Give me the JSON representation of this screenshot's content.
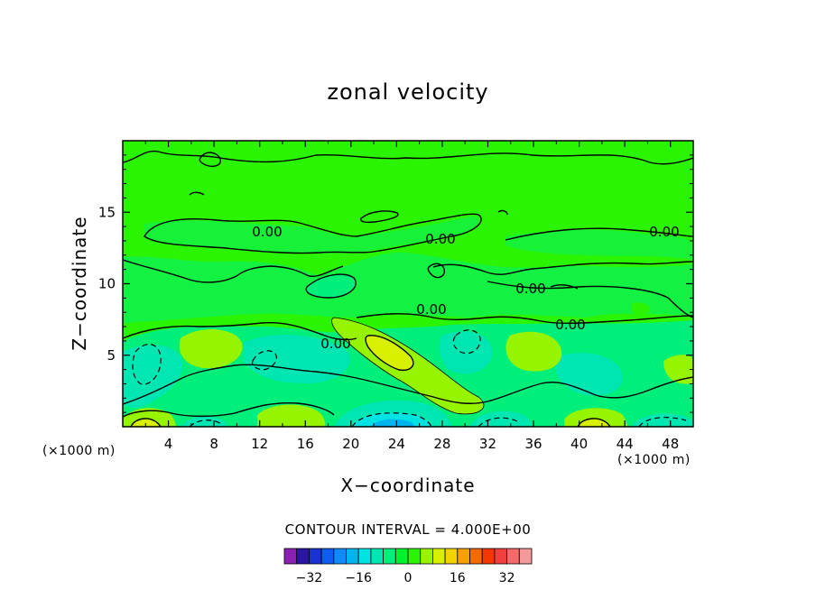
{
  "chart_data": {
    "type": "heatmap",
    "title": "zonal velocity",
    "xlabel": "X−coordinate",
    "ylabel": "Z−coordinate",
    "x_unit_left": "(×1000 m)",
    "x_unit_right": "(×1000 m)",
    "xlim": [
      0,
      50
    ],
    "ylim": [
      0,
      20
    ],
    "x_ticks": [
      "4",
      "8",
      "12",
      "16",
      "20",
      "24",
      "28",
      "32",
      "36",
      "40",
      "44",
      "48"
    ],
    "y_ticks": [
      "5",
      "10",
      "15"
    ],
    "contour_interval_text": "CONTOUR INTERVAL = 4.000E+00",
    "contour_interval": 4.0,
    "zero_contour_labels": [
      "0.00",
      "0.00",
      "0.00",
      "0.00",
      "0.00",
      "0.00",
      "0.00"
    ],
    "colorbar": {
      "colors": [
        "#8a1fb4",
        "#2b15a6",
        "#1933cf",
        "#0f5cf0",
        "#0a8cff",
        "#00b4f0",
        "#00e3e3",
        "#00e6b3",
        "#00ee7a",
        "#00f22f",
        "#2bf400",
        "#96f400",
        "#d6f000",
        "#f2d200",
        "#f5a100",
        "#f26a00",
        "#f23800",
        "#f23e3e",
        "#f46a6a",
        "#f49a9a"
      ],
      "tick_labels": [
        "−32",
        "−16",
        "0",
        "16",
        "32"
      ],
      "tick_values": [
        -32,
        -16,
        0,
        16,
        32
      ]
    },
    "features": [
      {
        "kind": "positive_max",
        "x": 24.5,
        "z": 5.5,
        "level": 8
      },
      {
        "kind": "positive",
        "x": 8.0,
        "z": 5.5,
        "level": 4
      },
      {
        "kind": "positive",
        "x": 36.0,
        "z": 5.5,
        "level": 4
      },
      {
        "kind": "positive",
        "x": 49.0,
        "z": 4.0,
        "level": 4
      },
      {
        "kind": "negative",
        "x": 14.0,
        "z": 4.5,
        "level": -4
      },
      {
        "kind": "negative",
        "x": 30.0,
        "z": 6.0,
        "level": -4
      },
      {
        "kind": "negative",
        "x": 24.0,
        "z": 0.5,
        "level": -16
      },
      {
        "kind": "negative",
        "x": 3.0,
        "z": 4.0,
        "level": -4
      },
      {
        "kind": "positive",
        "x": 2.0,
        "z": 0.2,
        "level": 8
      },
      {
        "kind": "positive",
        "x": 41.0,
        "z": 0.2,
        "level": 8
      }
    ]
  }
}
